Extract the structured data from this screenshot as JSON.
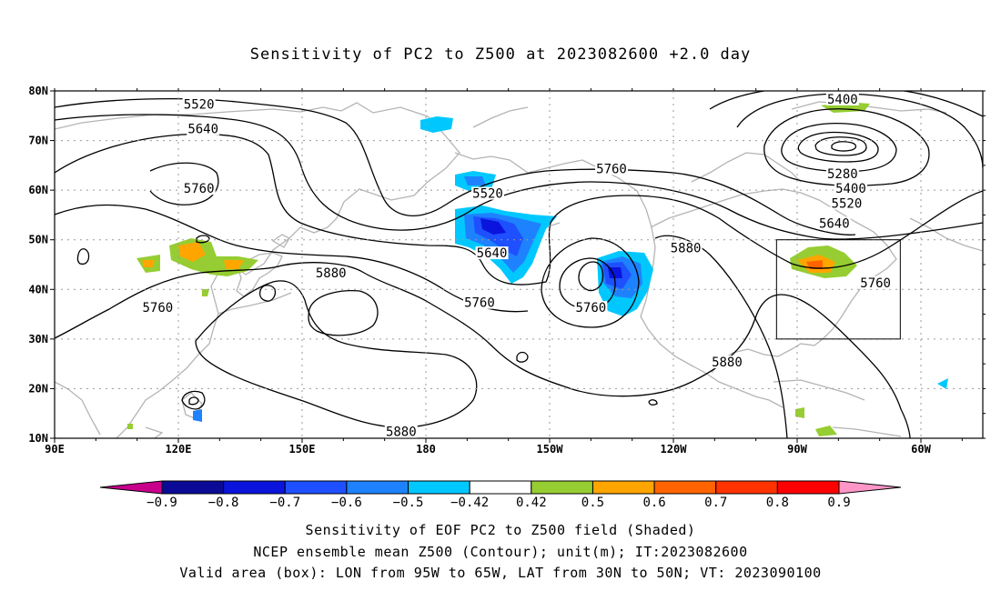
{
  "title": "Sensitivity of PC2 to Z500 at 2023082600 +2.0 day",
  "map": {
    "lat_ticks": [
      {
        "value": 80,
        "label": "80N"
      },
      {
        "value": 70,
        "label": "70N"
      },
      {
        "value": 60,
        "label": "60N"
      },
      {
        "value": 50,
        "label": "50N"
      },
      {
        "value": 40,
        "label": "40N"
      },
      {
        "value": 30,
        "label": "30N"
      },
      {
        "value": 20,
        "label": "20N"
      },
      {
        "value": 10,
        "label": "10N"
      }
    ],
    "lon_ticks": [
      {
        "value": 90,
        "label": "90E"
      },
      {
        "value": 120,
        "label": "120E"
      },
      {
        "value": 150,
        "label": "150E"
      },
      {
        "value": 180,
        "label": "180"
      },
      {
        "value": 210,
        "label": "150W"
      },
      {
        "value": 240,
        "label": "120W"
      },
      {
        "value": 270,
        "label": "90W"
      },
      {
        "value": 300,
        "label": "60W"
      }
    ],
    "lon_range": [
      90,
      315
    ],
    "lat_range": [
      10,
      80
    ],
    "grid_dotted": true,
    "contour_labels": [
      {
        "text": "5520",
        "lon": 125,
        "lat": 77
      },
      {
        "text": "5640",
        "lon": 126,
        "lat": 72
      },
      {
        "text": "5760",
        "lon": 125,
        "lat": 60
      },
      {
        "text": "5760",
        "lon": 115,
        "lat": 36
      },
      {
        "text": "5880",
        "lon": 157,
        "lat": 43
      },
      {
        "text": "5520",
        "lon": 195,
        "lat": 59
      },
      {
        "text": "5640",
        "lon": 196,
        "lat": 47
      },
      {
        "text": "5760",
        "lon": 193,
        "lat": 37
      },
      {
        "text": "5760",
        "lon": 220,
        "lat": 36
      },
      {
        "text": "5760",
        "lon": 225,
        "lat": 64
      },
      {
        "text": "5880",
        "lon": 243,
        "lat": 48
      },
      {
        "text": "5880",
        "lon": 253,
        "lat": 25
      },
      {
        "text": "5880",
        "lon": 174,
        "lat": 11
      },
      {
        "text": "5400",
        "lon": 281,
        "lat": 78
      },
      {
        "text": "5280",
        "lon": 281,
        "lat": 63
      },
      {
        "text": "5400",
        "lon": 283,
        "lat": 60
      },
      {
        "text": "5520",
        "lon": 282,
        "lat": 57
      },
      {
        "text": "5640",
        "lon": 279,
        "lat": 53
      },
      {
        "text": "5760",
        "lon": 289,
        "lat": 41
      }
    ],
    "valid_box": {
      "lon_min": 265,
      "lon_max": 295,
      "lat_min": 30,
      "lat_max": 50
    }
  },
  "colorbar": {
    "colors": [
      "#c8008c",
      "#0a0a96",
      "#0a14dc",
      "#1e50ff",
      "#1e82ff",
      "#00c8ff",
      "#ffffff",
      "#96cd32",
      "#ffa500",
      "#ff6400",
      "#ff3200",
      "#ff0000",
      "#ff96c8"
    ],
    "labels": [
      "−0.9",
      "−0.8",
      "−0.7",
      "−0.6",
      "−0.5",
      "−0.42",
      "0.42",
      "0.5",
      "0.6",
      "0.7",
      "0.8",
      "0.9"
    ]
  },
  "captions": {
    "line1": "Sensitivity of EOF PC2 to Z500 field (Shaded)",
    "line2": "NCEP ensemble mean Z500 (Contour); unit(m); IT:2023082600",
    "line3": "Valid area (box): LON from 95W to 65W, LAT from 30N to 50N; VT: 2023090100"
  }
}
